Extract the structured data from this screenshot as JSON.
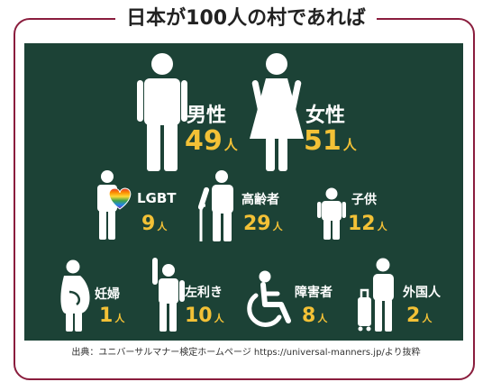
{
  "title": "日本が100人の村であれば",
  "unit": "人",
  "groups": {
    "male": {
      "label": "男性",
      "value": "49"
    },
    "female": {
      "label": "女性",
      "value": "51"
    },
    "lgbt": {
      "label": "LGBT",
      "value": "9"
    },
    "elderly": {
      "label": "高齢者",
      "value": "29"
    },
    "child": {
      "label": "子供",
      "value": "12"
    },
    "pregnant": {
      "label": "妊婦",
      "value": "1"
    },
    "lefthand": {
      "label": "左利き",
      "value": "10"
    },
    "disabled": {
      "label": "障害者",
      "value": "8"
    },
    "foreign": {
      "label": "外国人",
      "value": "2"
    }
  },
  "source": "出典：ユニバーサルマナー検定ホームページ https://universal-manners.jp/より抜粋",
  "colors": {
    "background": "#1c4236",
    "accent": "#f3c136",
    "border": "#8a1d3d"
  }
}
